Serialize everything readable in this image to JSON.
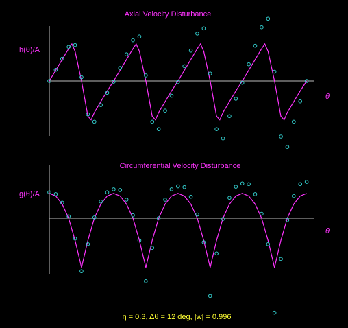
{
  "chart_data": [
    {
      "type": "line",
      "title": "Axial Velocity Disturbance",
      "y_label": "h(θ)/A",
      "x_label": "θ",
      "xlim": [
        0,
        4.1
      ],
      "ylim": [
        -1.9,
        1.9
      ],
      "series": [
        {
          "type": "line",
          "color": "#ff33ff",
          "x": [
            0,
            0.1,
            0.2,
            0.3,
            0.35,
            0.4,
            0.5,
            0.6,
            0.65,
            0.7,
            0.8,
            0.9,
            1,
            1.1,
            1.2,
            1.3,
            1.35,
            1.4,
            1.5,
            1.6,
            1.65,
            1.7,
            1.8,
            1.9,
            2,
            2.1,
            2.2,
            2.3,
            2.35,
            2.4,
            2.5,
            2.6,
            2.65,
            2.7,
            2.8,
            2.9,
            3,
            3.1,
            3.2,
            3.3,
            3.35,
            3.4,
            3.5,
            3.6,
            3.65,
            3.7,
            3.8,
            3.9,
            4
          ],
          "values": [
            0,
            0.29,
            0.58,
            0.87,
            1.0,
            0.8,
            0,
            -0.95,
            -1.05,
            -0.85,
            -0.56,
            -0.27,
            0,
            0.29,
            0.58,
            0.87,
            1.0,
            0.8,
            0,
            -0.95,
            -1.05,
            -0.85,
            -0.56,
            -0.27,
            0,
            0.29,
            0.58,
            0.87,
            1.0,
            0.8,
            0,
            -0.95,
            -1.05,
            -0.85,
            -0.56,
            -0.27,
            0,
            0.29,
            0.58,
            0.87,
            1.0,
            0.8,
            0,
            -0.95,
            -1.05,
            -0.85,
            -0.56,
            -0.27,
            0
          ]
        },
        {
          "type": "scatter",
          "color": "#33cccc",
          "x": [
            0,
            0.1,
            0.2,
            0.3,
            0.4,
            0.5,
            0.6,
            0.7,
            0.8,
            0.9,
            1,
            1.1,
            1.2,
            1.3,
            1.4,
            1.5,
            1.6,
            1.7,
            1.8,
            1.9,
            2,
            2.1,
            2.2,
            2.3,
            2.4,
            2.5,
            2.6,
            2.7,
            2.8,
            2.9,
            3,
            3.1,
            3.2,
            3.3,
            3.4,
            3.5,
            3.6,
            3.7,
            3.8,
            3.9,
            4
          ],
          "values": [
            0,
            0.3,
            0.6,
            0.92,
            0.97,
            0.1,
            -0.9,
            -1.1,
            -0.65,
            -0.32,
            -0.02,
            0.35,
            0.72,
            1.1,
            1.2,
            0.15,
            -1.1,
            -1.3,
            -0.8,
            -0.4,
            -0.03,
            0.4,
            0.82,
            1.28,
            1.42,
            0.2,
            -1.3,
            -1.55,
            -0.95,
            -0.48,
            -0.05,
            0.45,
            0.95,
            1.45,
            1.68,
            0.25,
            -1.5,
            -1.78,
            -1.1,
            -0.55,
            0
          ]
        }
      ]
    },
    {
      "type": "line",
      "title": "Circumferential Velocity Disturbance",
      "y_label": "g(θ)/A",
      "x_label": "θ",
      "xlim": [
        0,
        4.1
      ],
      "ylim": [
        -2.7,
        1.9
      ],
      "series": [
        {
          "type": "line",
          "color": "#ff33ff",
          "x": [
            0,
            0.1,
            0.2,
            0.3,
            0.4,
            0.5,
            0.6,
            0.7,
            0.8,
            0.9,
            1,
            1.1,
            1.2,
            1.3,
            1.4,
            1.5,
            1.6,
            1.7,
            1.8,
            1.9,
            2,
            2.1,
            2.2,
            2.3,
            2.4,
            2.5,
            2.6,
            2.7,
            2.8,
            2.9,
            3,
            3.1,
            3.2,
            3.3,
            3.4,
            3.5,
            3.6,
            3.7,
            3.8,
            3.9,
            4
          ],
          "values": [
            0.67,
            0.6,
            0.38,
            0,
            -0.6,
            -1.33,
            -0.6,
            0,
            0.38,
            0.6,
            0.67,
            0.6,
            0.38,
            0,
            -0.6,
            -1.33,
            -0.6,
            0,
            0.38,
            0.6,
            0.67,
            0.6,
            0.38,
            0,
            -0.6,
            -1.33,
            -0.6,
            0,
            0.38,
            0.6,
            0.67,
            0.6,
            0.38,
            0,
            -0.6,
            -1.33,
            -0.6,
            0,
            0.38,
            0.6,
            0.67
          ]
        },
        {
          "type": "scatter",
          "color": "#33cccc",
          "x": [
            0,
            0.1,
            0.2,
            0.3,
            0.4,
            0.5,
            0.6,
            0.7,
            0.8,
            0.9,
            1,
            1.1,
            1.2,
            1.3,
            1.4,
            1.5,
            1.6,
            1.7,
            1.8,
            1.9,
            2,
            2.1,
            2.2,
            2.3,
            2.4,
            2.5,
            2.6,
            2.7,
            2.8,
            2.9,
            3,
            3.1,
            3.2,
            3.3,
            3.4,
            3.5,
            3.6,
            3.7,
            3.8,
            3.9,
            4
          ],
          "values": [
            0.7,
            0.65,
            0.42,
            0.05,
            -0.55,
            -1.43,
            -0.7,
            0.02,
            0.45,
            0.7,
            0.78,
            0.76,
            0.5,
            0.08,
            -0.6,
            -1.7,
            -0.8,
            0,
            0.5,
            0.78,
            0.86,
            0.84,
            0.58,
            0.1,
            -0.65,
            -2.1,
            -0.95,
            -0.02,
            0.55,
            0.85,
            0.94,
            0.92,
            0.65,
            0.12,
            -0.7,
            -2.55,
            -1.1,
            -0.05,
            0.6,
            0.92,
            0.98
          ]
        }
      ]
    }
  ],
  "caption": "η = 0.3, Δθ = 12 deg, |w| = 0.996"
}
